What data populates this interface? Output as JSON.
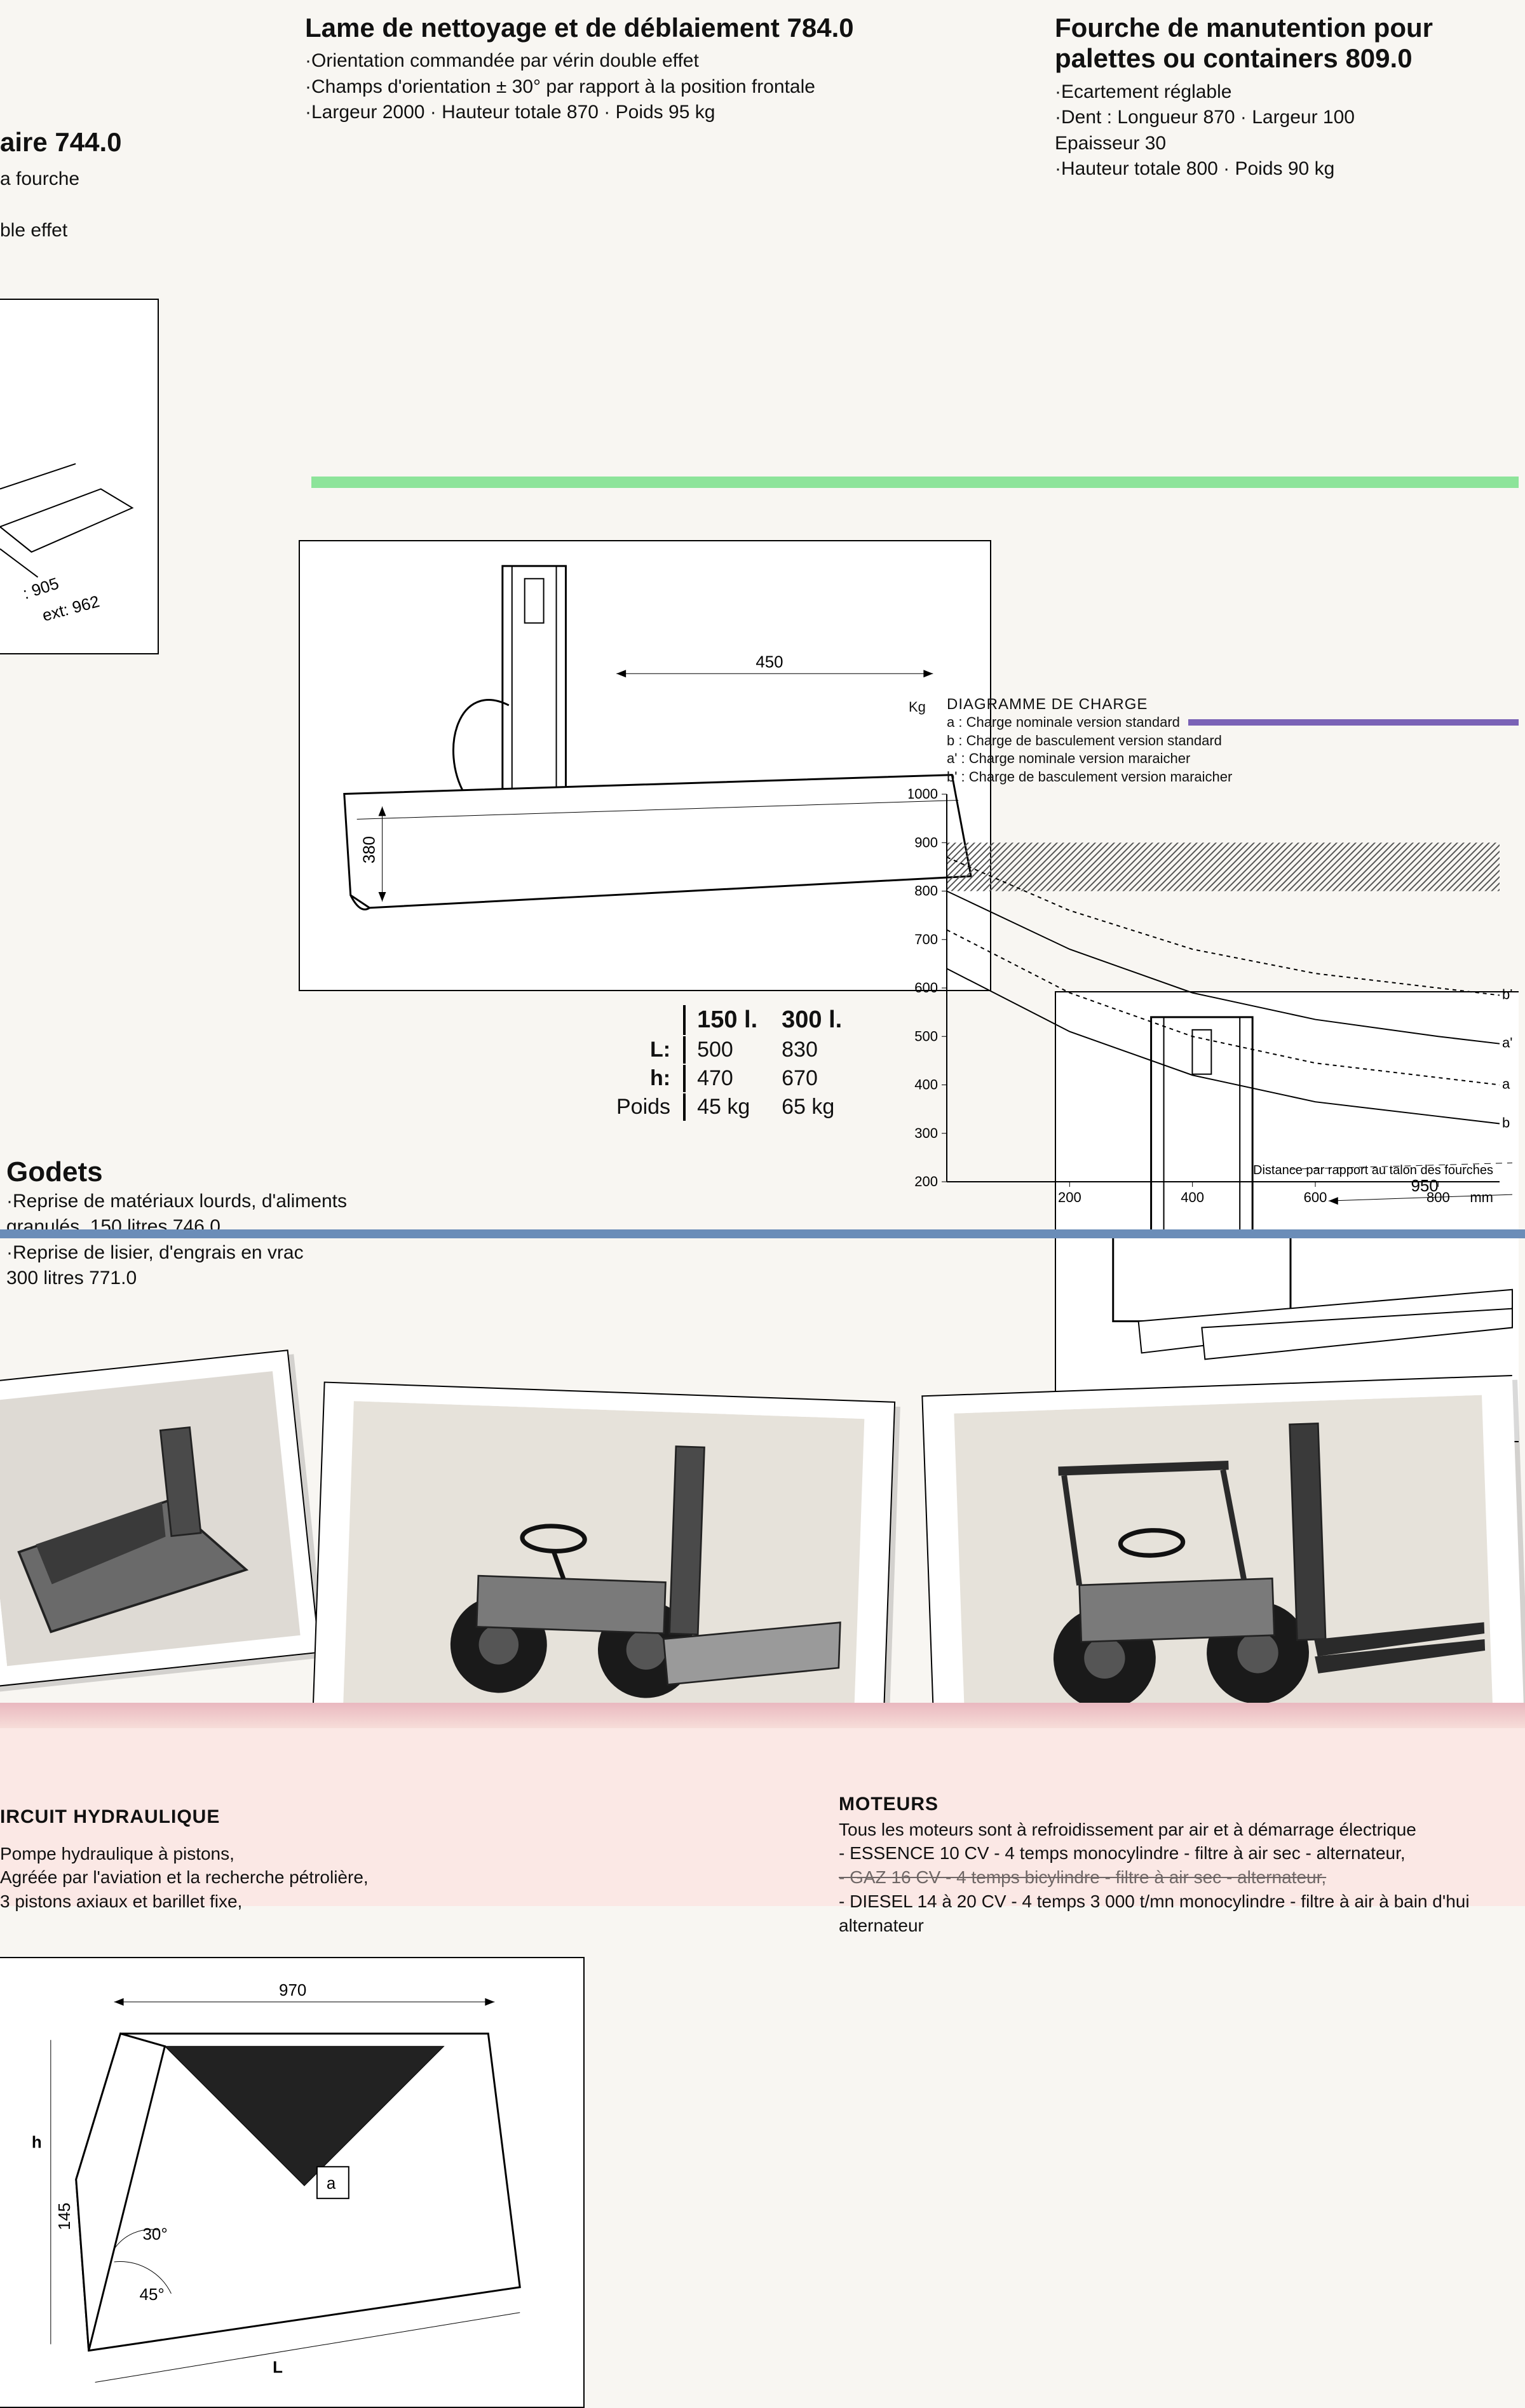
{
  "colors": {
    "page_bg": "#f8f6f2",
    "ink": "#111111",
    "rule": "#000000",
    "green_artifact": "#8de49a",
    "blue_artifact": "#6b8db8",
    "pink_bg": "#fbe8e5",
    "hatch": "#555555",
    "purple_artifact": "#5a3da6"
  },
  "left_fragment": {
    "title_suffix": "aire 744.0",
    "line1": "a fourche",
    "line2": "ble effet",
    "dim_inner": ": 905",
    "dim_outer": "ext: 962"
  },
  "lame": {
    "title": "Lame de nettoyage et de déblaiement  784.0",
    "specs": [
      "·Orientation commandée par vérin double effet",
      "·Champs d'orientation ± 30° par rapport à la position frontale",
      "·Largeur 2000 · Hauteur totale 870 · Poids 95 kg"
    ],
    "dim_width": "450",
    "dim_height": "380"
  },
  "fourche": {
    "title": "Fourche de manutention pour palettes ou containers  809.0",
    "specs": [
      "·Ecartement réglable",
      "·Dent : Longueur 870 · Largeur 100",
      "Epaisseur 30",
      "·Hauteur totale 800 · Poids 90 kg"
    ],
    "dim_reach": "950"
  },
  "godets": {
    "title": "Godets",
    "specs": [
      "·Reprise de matériaux lourds, d'aliments",
      "granulés. 150 litres  746.0",
      "·Reprise de lisier, d'engrais en vrac",
      "300 litres  771.0"
    ],
    "drawing": {
      "width": "970",
      "h_label": "h",
      "mouth_h": "145",
      "angle1": "30°",
      "angle2": "45°",
      "L_label": "L",
      "inner_label": "a"
    },
    "table": {
      "col1": "150 l.",
      "col2": "300 l.",
      "rows": [
        {
          "label": "L:",
          "v1": "500",
          "v2": "830"
        },
        {
          "label": "h:",
          "v1": "470",
          "v2": "670"
        },
        {
          "label": "Poids",
          "v1": "45 kg",
          "v2": "65 kg"
        }
      ]
    }
  },
  "chart": {
    "type": "line",
    "title": "DIAGRAMME DE CHARGE",
    "y_unit": "Kg",
    "legend": [
      "a : Charge nominale version standard",
      "b : Charge de basculement version standard",
      "a' : Charge nominale version maraicher",
      "b' : Charge de basculement version maraicher"
    ],
    "x_label": "Distance par rapport au talon des fourches",
    "x_unit": "mm",
    "xlim": [
      0,
      900
    ],
    "ylim": [
      200,
      1000
    ],
    "xticks": [
      200,
      400,
      600,
      800
    ],
    "yticks": [
      200,
      300,
      400,
      500,
      600,
      700,
      800,
      900,
      1000
    ],
    "background_color": "#ffffff",
    "axis_color": "#000000",
    "grid": false,
    "hatch_band_y": [
      800,
      900
    ],
    "series": [
      {
        "name": "b'",
        "line_color": "#000000",
        "dash": "6,6",
        "line_width": 2,
        "points": [
          [
            0,
            870
          ],
          [
            200,
            760
          ],
          [
            400,
            680
          ],
          [
            600,
            630
          ],
          [
            800,
            600
          ],
          [
            900,
            585
          ]
        ]
      },
      {
        "name": "a'",
        "line_color": "#000000",
        "dash": "none",
        "line_width": 2,
        "points": [
          [
            0,
            800
          ],
          [
            200,
            680
          ],
          [
            400,
            590
          ],
          [
            600,
            535
          ],
          [
            800,
            500
          ],
          [
            900,
            485
          ]
        ]
      },
      {
        "name": "b",
        "line_color": "#000000",
        "dash": "6,6",
        "line_width": 2,
        "points": [
          [
            0,
            720
          ],
          [
            200,
            590
          ],
          [
            400,
            500
          ],
          [
            600,
            445
          ],
          [
            800,
            415
          ],
          [
            900,
            400
          ]
        ]
      },
      {
        "name": "a",
        "line_color": "#000000",
        "dash": "none",
        "line_width": 2,
        "points": [
          [
            0,
            640
          ],
          [
            200,
            510
          ],
          [
            400,
            420
          ],
          [
            600,
            365
          ],
          [
            800,
            335
          ],
          [
            900,
            320
          ]
        ]
      }
    ],
    "end_labels": [
      "b'",
      "a'",
      "a",
      "b"
    ]
  },
  "footer": {
    "left": {
      "heading": "IRCUIT HYDRAULIQUE",
      "lines": [
        "Pompe hydraulique à pistons,",
        "Agréée par l'aviation et la recherche pétrolière,",
        "3 pistons axiaux et barillet fixe,"
      ]
    },
    "right": {
      "heading": "MOTEURS",
      "lines": [
        "Tous les moteurs sont à refroidissement par air et à démarrage électrique",
        "- ESSENCE 10 CV - 4 temps monocylindre - filtre à air sec - alternateur,",
        "- GAZ 16 CV - 4 temps bicylindre - filtre à air sec - alternateur,",
        "- DIESEL 14 à 20 CV - 4 temps 3 000 t/mn monocylindre - filtre à air à bain d'hui",
        "  alternateur"
      ]
    }
  }
}
